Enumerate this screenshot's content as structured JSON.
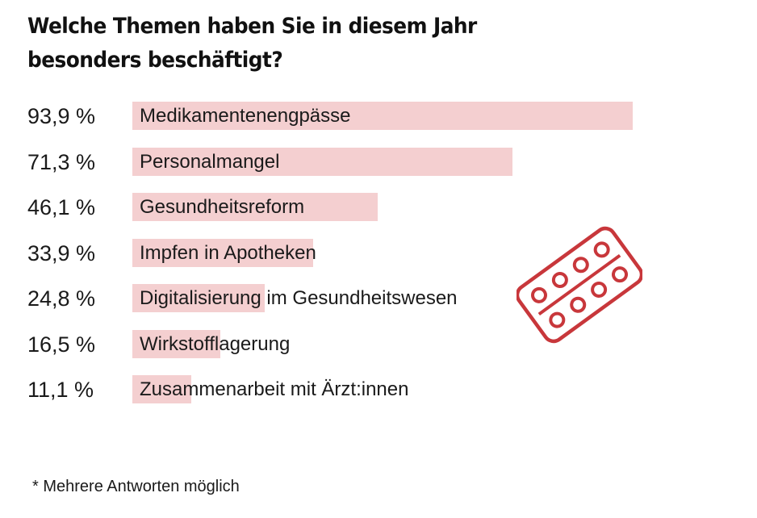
{
  "title": "Welche Themen haben Sie in diesem Jahr besonders beschäftigt?",
  "footnote": "* Mehrere Antworten möglich",
  "colors": {
    "bar": "#f4cfd0",
    "icon": "#c8373b",
    "text": "#1a1a1a"
  },
  "icon": "pill-blister-icon",
  "chart_data": {
    "type": "bar",
    "orientation": "horizontal",
    "title": "Welche Themen haben Sie in diesem Jahr besonders beschäftigt?",
    "unit": "%",
    "xlim": [
      0,
      100
    ],
    "grid": false,
    "categories": [
      "Medikamentenengpässe",
      "Personalmangel",
      "Gesundheitsreform",
      "Impfen in Apotheken",
      "Digitalisierung im Gesundheitswesen",
      "Wirkstofflagerung",
      "Zusammenarbeit mit Ärzt:innen"
    ],
    "values": [
      93.9,
      71.3,
      46.1,
      33.9,
      24.8,
      16.5,
      11.1
    ],
    "value_labels": [
      "93,9 %",
      "71,3 %",
      "46,1 %",
      "33,9 %",
      "24,8 %",
      "16,5 %",
      "11,1 %"
    ]
  }
}
